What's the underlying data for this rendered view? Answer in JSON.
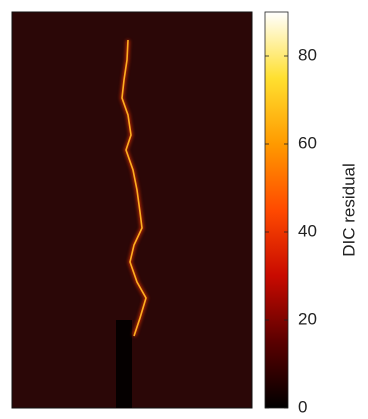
{
  "chart_data": {
    "type": "heatmap",
    "colorbar": {
      "label": "DIC residual",
      "clim": [
        0,
        90
      ],
      "ticks": [
        0,
        20,
        40,
        60,
        80
      ],
      "colormap": [
        "#000000",
        "#5a0000",
        "#c80a00",
        "#ff4a00",
        "#ff9a00",
        "#ffe030",
        "#ffffff"
      ]
    }
  }
}
